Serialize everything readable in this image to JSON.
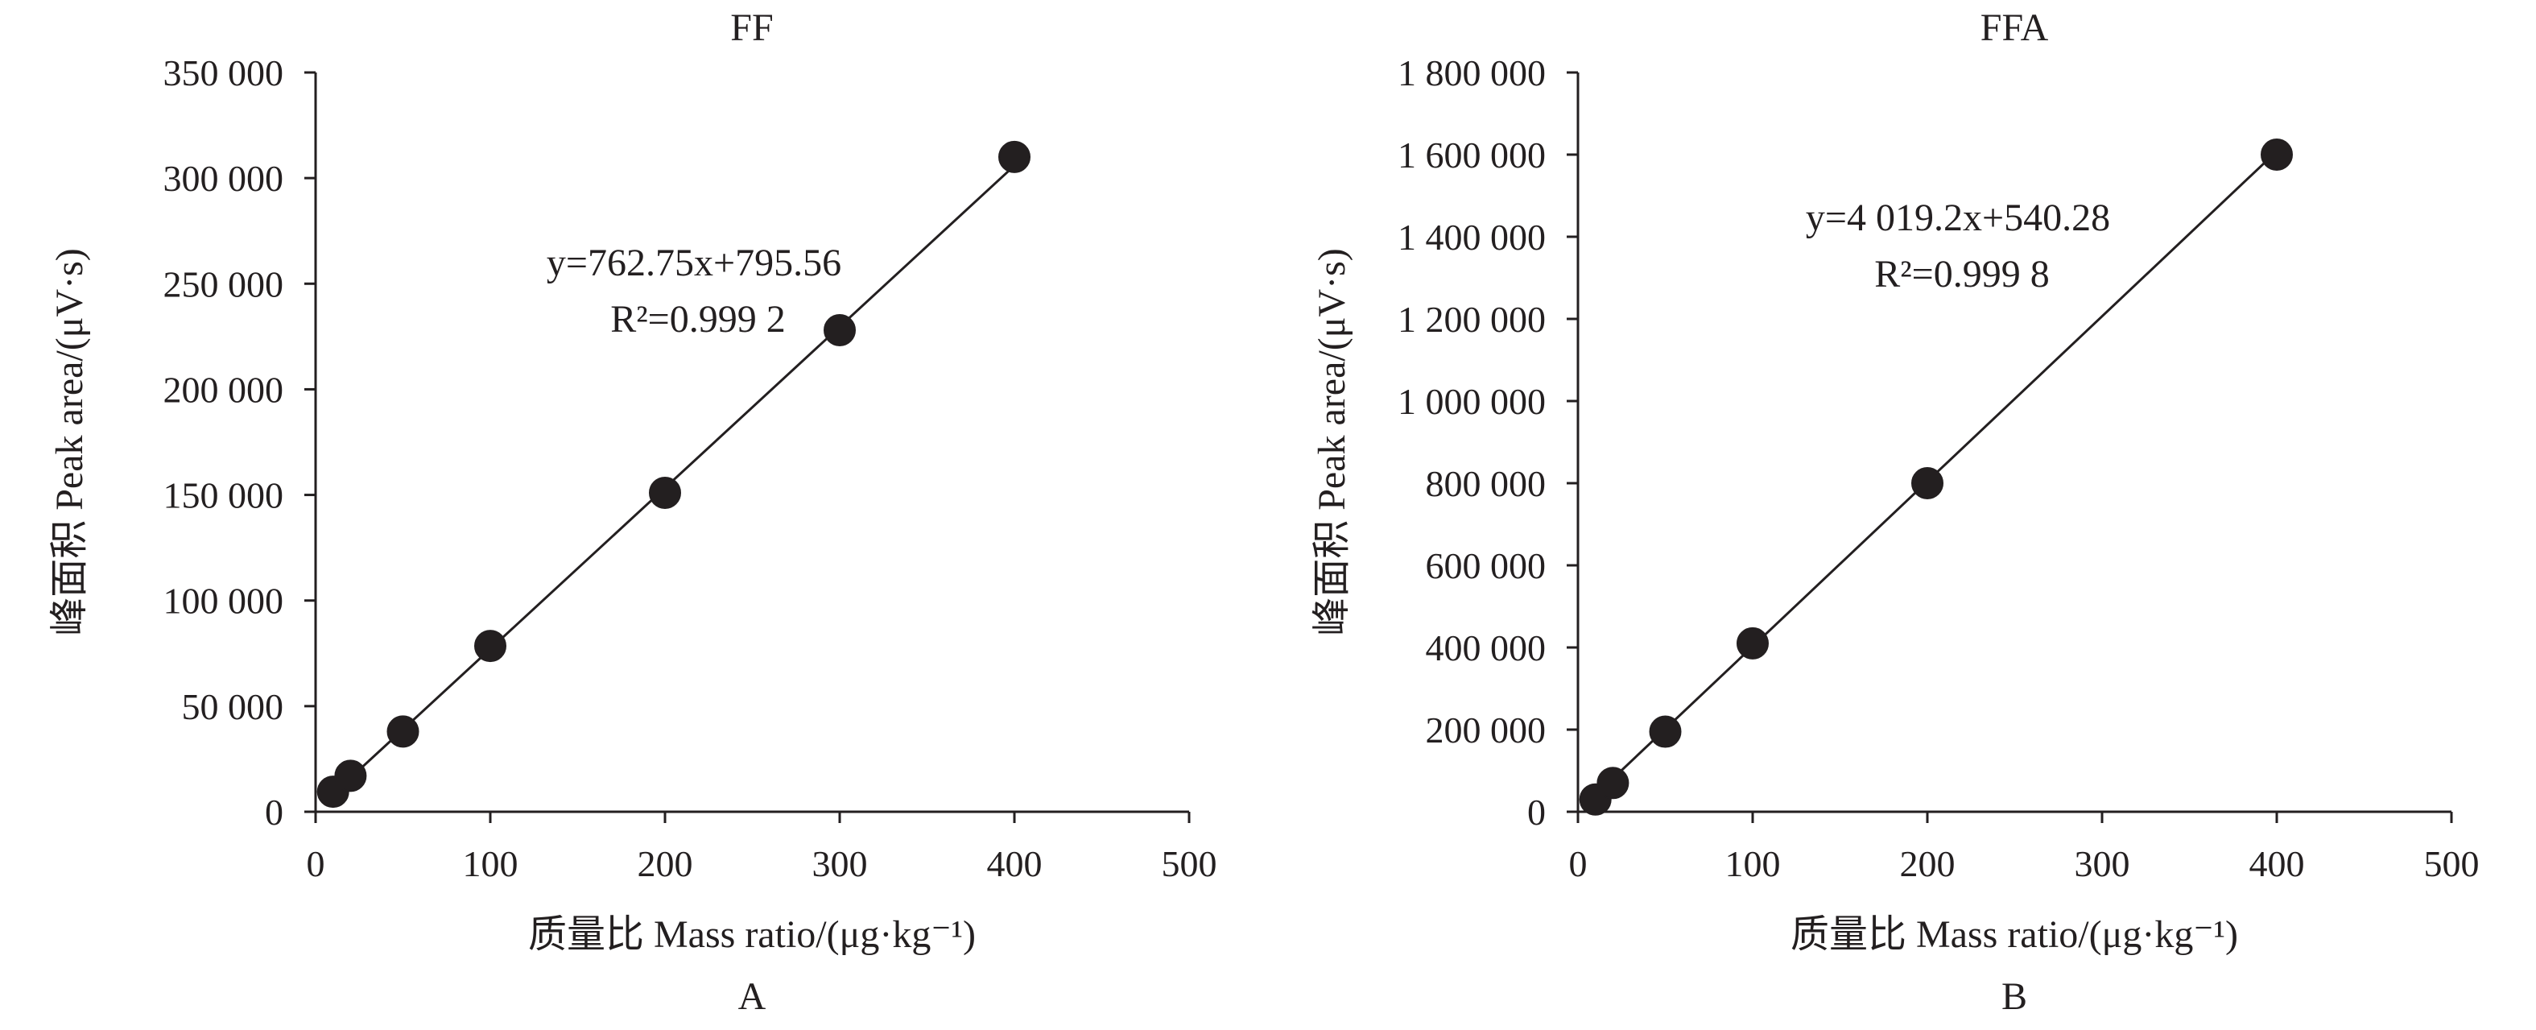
{
  "chart_data": [
    {
      "type": "scatter",
      "title": "FF",
      "panel_label": "A",
      "xlabel": "质量比 Mass ratio/(μg·kg⁻¹)",
      "ylabel": "峰面积 Peak area/(μV·s)",
      "xlim": [
        0,
        500
      ],
      "ylim": [
        0,
        350000
      ],
      "x_ticks": [
        0,
        100,
        200,
        300,
        400,
        500
      ],
      "x_tick_labels": [
        "0",
        "100",
        "200",
        "300",
        "400",
        "500"
      ],
      "y_ticks": [
        0,
        50000,
        100000,
        150000,
        200000,
        250000,
        300000,
        350000
      ],
      "y_tick_labels": [
        "0",
        "50 000",
        "100 000",
        "150 000",
        "200 000",
        "250 000",
        "300 000",
        "350 000"
      ],
      "grid": false,
      "series": [
        {
          "x": [
            10,
            20,
            50,
            100,
            200,
            300,
            400
          ],
          "y": [
            9500,
            17000,
            38000,
            78500,
            151000,
            228000,
            310000
          ]
        }
      ],
      "fit": {
        "slope": 762.75,
        "intercept": 795.56,
        "x_range": [
          5,
          400
        ]
      },
      "equation_text": "y=762.75x+795.56",
      "r2_text": "R²=0.999 2"
    },
    {
      "type": "scatter",
      "title": "FFA",
      "panel_label": "B",
      "xlabel": "质量比 Mass ratio/(μg·kg⁻¹)",
      "ylabel": "峰面积 Peak area/(μV·s)",
      "xlim": [
        0,
        500
      ],
      "ylim": [
        0,
        1800000
      ],
      "x_ticks": [
        0,
        100,
        200,
        300,
        400,
        500
      ],
      "x_tick_labels": [
        "0",
        "100",
        "200",
        "300",
        "400",
        "500"
      ],
      "y_ticks": [
        0,
        200000,
        400000,
        600000,
        800000,
        1000000,
        1200000,
        1400000,
        1600000,
        1800000
      ],
      "y_tick_labels": [
        "0",
        "200 000",
        "400 000",
        "600 000",
        "800 000",
        "1 000 000",
        "1 200 000",
        "1 400 000",
        "1 600 000",
        "1 800 000"
      ],
      "grid": false,
      "series": [
        {
          "x": [
            10,
            20,
            50,
            100,
            200,
            400
          ],
          "y": [
            30000,
            70000,
            195000,
            410000,
            800000,
            1600000
          ]
        }
      ],
      "fit": {
        "slope": 4019.2,
        "intercept": 540.28,
        "x_range": [
          5,
          400
        ]
      },
      "equation_text": "y=4 019.2x+540.28",
      "r2_text": "R²=0.999 8"
    }
  ]
}
